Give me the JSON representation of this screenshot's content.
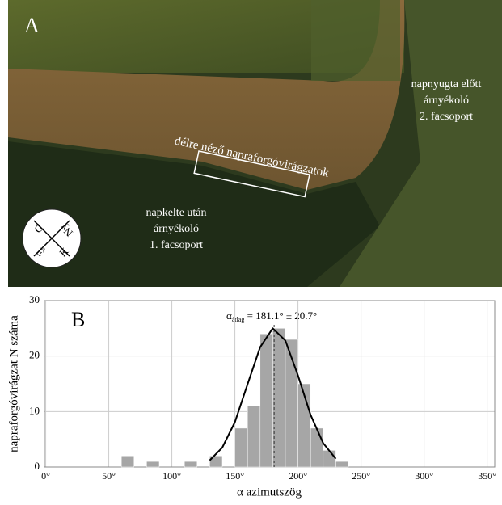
{
  "photo": {
    "panel": "A",
    "strip_label": "délre néző napraforgóvirágzatok",
    "group2": [
      "napnyugta előtt",
      "árnyékoló",
      "2. facsoport"
    ],
    "group1": [
      "napkelte után",
      "árnyékoló",
      "1. facsoport"
    ],
    "compass": [
      "D",
      "Ny",
      "É",
      "K"
    ]
  },
  "chart_data": {
    "type": "histogram",
    "panel": "B",
    "xlabel": "α azimutszög",
    "ylabel": "napraforgóvirágzat N száma",
    "annotation": {
      "symbol": "α",
      "subscript": "átlag",
      "text": " = 181.1° ± 20.7°"
    },
    "bins": [
      60,
      70,
      80,
      90,
      100,
      110,
      120,
      130,
      140,
      150,
      160,
      170,
      180,
      190,
      200,
      210,
      220,
      230,
      240
    ],
    "values": [
      2,
      0,
      1,
      0,
      0,
      1,
      0,
      2,
      0,
      7,
      11,
      24,
      25,
      23,
      15,
      7,
      3,
      1
    ],
    "color": "#a6a6a6",
    "curve": {
      "x": [
        130,
        140,
        150,
        160,
        170,
        180,
        190,
        200,
        210,
        220,
        230
      ],
      "values": [
        1.2,
        3.5,
        8.1,
        14.9,
        21.6,
        25.0,
        22.8,
        16.5,
        9.4,
        4.3,
        1.5
      ],
      "color": "#000000"
    },
    "mean_line": 181.1,
    "xlim": [
      -1,
      356
    ],
    "ylim": [
      0,
      30
    ],
    "xticks": [
      {
        "value": 0,
        "label": "0°"
      },
      {
        "value": 50,
        "label": "50°"
      },
      {
        "value": 100,
        "label": "100°"
      },
      {
        "value": 150,
        "label": "150°"
      },
      {
        "value": 200,
        "label": "200°"
      },
      {
        "value": 250,
        "label": "250°"
      },
      {
        "value": 300,
        "label": "300°"
      },
      {
        "value": 350,
        "label": "350°"
      }
    ],
    "yticks": [
      0,
      10,
      20,
      30
    ],
    "grid": true
  }
}
